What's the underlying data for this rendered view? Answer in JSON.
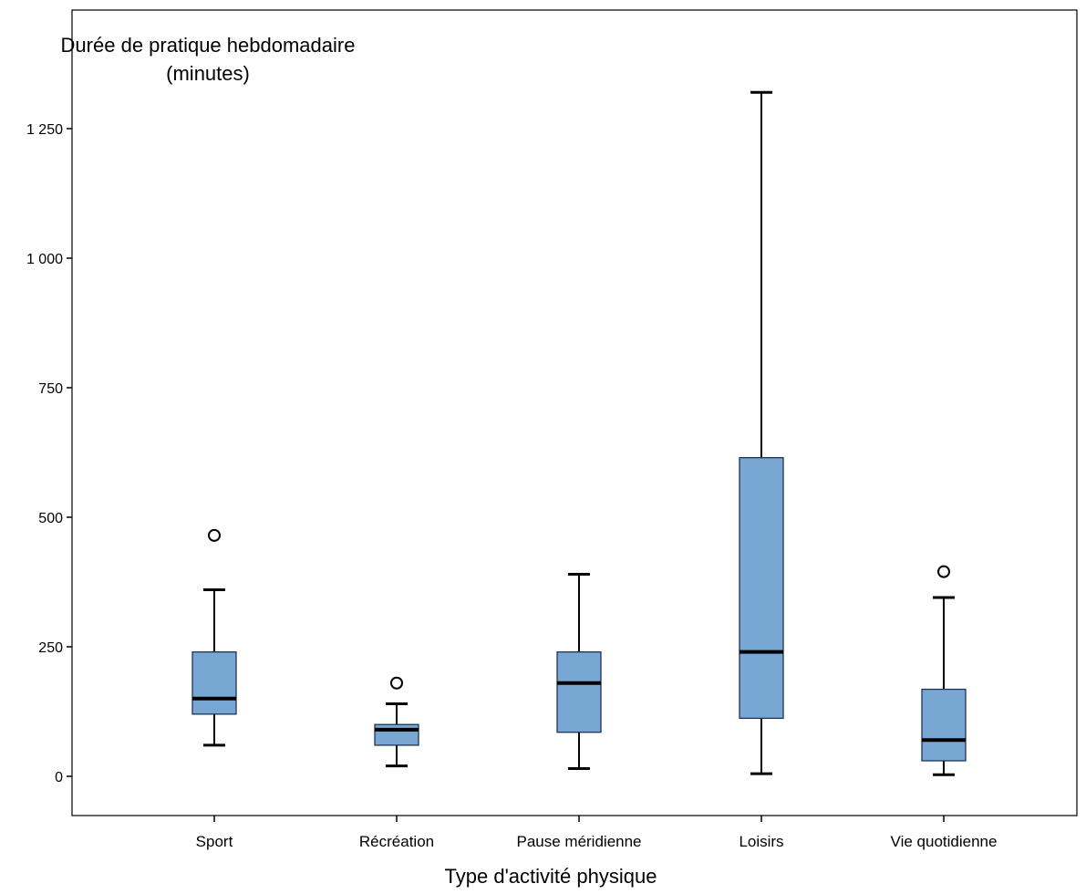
{
  "chart_data": {
    "type": "boxplot",
    "ylabel_line1": "Durée de pratique hebdomadaire",
    "ylabel_line2": "(minutes)",
    "xlabel": "Type d'activité physique",
    "ylim": [
      -75,
      1400
    ],
    "yticks": [
      0,
      250,
      500,
      750,
      1000,
      1250
    ],
    "ytick_labels": [
      "0",
      "250",
      "500",
      "750",
      "1 000",
      "1 250"
    ],
    "grid": false,
    "box_color": "#78a7d4",
    "categories": [
      "Sport",
      "Récréation",
      "Pause méridienne",
      "Loisirs",
      "Vie quotidienne"
    ],
    "boxes": [
      {
        "min": 60,
        "q1": 120,
        "median": 150,
        "q3": 240,
        "max": 360,
        "outliers": [
          465
        ]
      },
      {
        "min": 20,
        "q1": 60,
        "median": 90,
        "q3": 100,
        "max": 140,
        "outliers": [
          180
        ]
      },
      {
        "min": 15,
        "q1": 85,
        "median": 180,
        "q3": 240,
        "max": 390,
        "outliers": []
      },
      {
        "min": 5,
        "q1": 112,
        "median": 240,
        "q3": 615,
        "max": 1320,
        "outliers": []
      },
      {
        "min": 3,
        "q1": 30,
        "median": 70,
        "q3": 168,
        "max": 345,
        "outliers": [
          395
        ]
      }
    ]
  }
}
